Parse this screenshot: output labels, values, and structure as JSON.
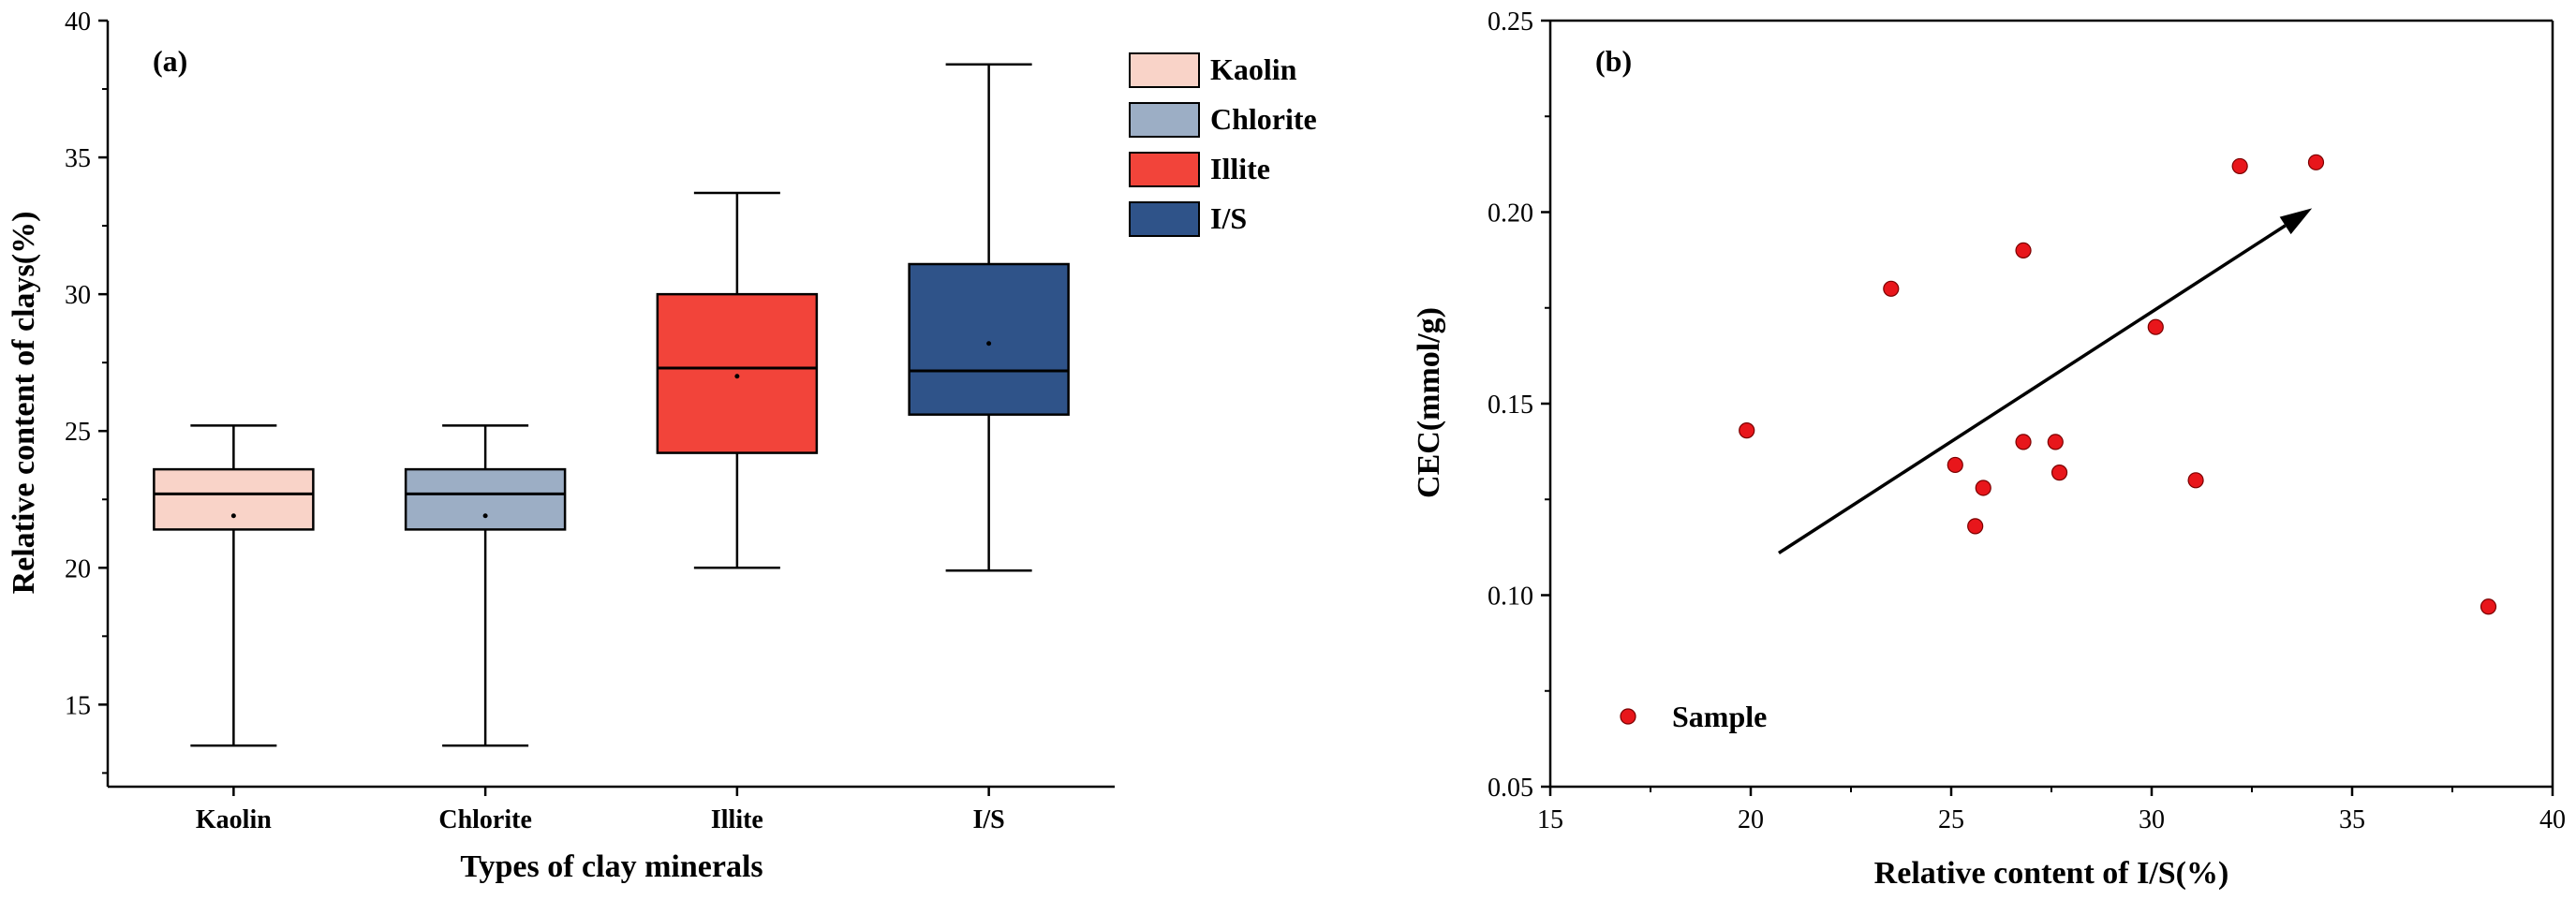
{
  "chart_data": [
    {
      "type": "box",
      "panel_label": "(a)",
      "xlabel": "Types of clay minerals",
      "ylabel": "Relative content of clays(%)",
      "ylim": [
        12,
        40
      ],
      "yticks": [
        15,
        20,
        25,
        30,
        35,
        40
      ],
      "categories": [
        "Kaolin",
        "Chlorite",
        "Illite",
        "I/S"
      ],
      "boxes": [
        {
          "name": "Kaolin",
          "min": 13.5,
          "q1": 21.4,
          "median": 22.7,
          "q3": 23.6,
          "max": 25.2,
          "mean": 21.9,
          "color": "#f9d3c8"
        },
        {
          "name": "Chlorite",
          "min": 13.5,
          "q1": 21.4,
          "median": 22.7,
          "q3": 23.6,
          "max": 25.2,
          "mean": 21.9,
          "color": "#9caec5"
        },
        {
          "name": "Illite",
          "min": 20.0,
          "q1": 24.2,
          "median": 27.3,
          "q3": 30.0,
          "max": 33.7,
          "mean": 27.0,
          "color": "#f2443a"
        },
        {
          "name": "I/S",
          "min": 19.9,
          "q1": 25.6,
          "median": 27.2,
          "q3": 31.1,
          "max": 38.4,
          "mean": 28.2,
          "color": "#2f5389"
        }
      ],
      "legend": [
        "Kaolin",
        "Chlorite",
        "Illite",
        "I/S"
      ],
      "legend_position": "top-right"
    },
    {
      "type": "scatter",
      "panel_label": "(b)",
      "xlabel": "Relative content of I/S(%)",
      "ylabel": "CEC(mmol/g)",
      "xlim": [
        15,
        40
      ],
      "ylim": [
        0.05,
        0.25
      ],
      "xticks": [
        15,
        20,
        25,
        30,
        35,
        40
      ],
      "yticks": [
        "0.05",
        "0.10",
        "0.15",
        "0.20",
        "0.25"
      ],
      "series": [
        {
          "name": "Sample",
          "color": "#e8161b",
          "points": [
            [
              19.9,
              0.143
            ],
            [
              23.5,
              0.18
            ],
            [
              25.1,
              0.134
            ],
            [
              25.6,
              0.118
            ],
            [
              25.8,
              0.128
            ],
            [
              26.8,
              0.19
            ],
            [
              26.8,
              0.14
            ],
            [
              27.6,
              0.14
            ],
            [
              27.7,
              0.132
            ],
            [
              30.1,
              0.17
            ],
            [
              31.1,
              0.13
            ],
            [
              32.2,
              0.212
            ],
            [
              34.1,
              0.213
            ],
            [
              38.4,
              0.097
            ]
          ]
        }
      ],
      "trend_arrow": {
        "from": [
          20.7,
          0.111
        ],
        "to": [
          34.0,
          0.201
        ]
      },
      "legend_position": "bottom-left"
    }
  ]
}
